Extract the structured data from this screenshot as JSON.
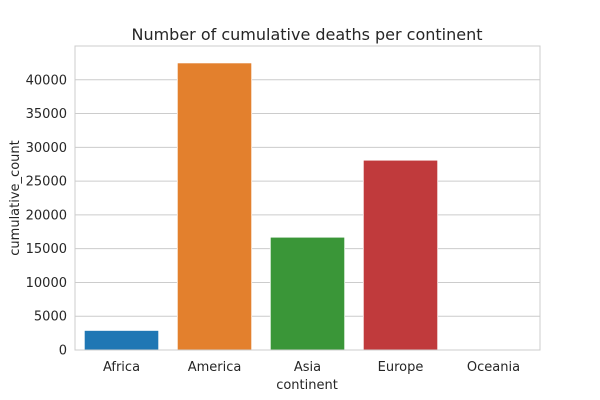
{
  "chart_data": {
    "type": "bar",
    "title": "Number of cumulative deaths per continent",
    "xlabel": "continent",
    "ylabel": "cumulative_count",
    "categories": [
      "Africa",
      "America",
      "Asia",
      "Europe",
      "Oceania"
    ],
    "values": [
      2900,
      42500,
      16700,
      28100,
      30
    ],
    "colors": [
      "#1f77b4",
      "#e3802d",
      "#3a9638",
      "#c03a3c",
      "#8e67ba"
    ],
    "ylim": [
      0,
      45000
    ],
    "yticks": [
      0,
      5000,
      10000,
      15000,
      20000,
      25000,
      30000,
      35000,
      40000
    ],
    "yticklabels": [
      "0",
      "5000",
      "10000",
      "15000",
      "20000",
      "25000",
      "30000",
      "35000",
      "40000"
    ],
    "grid": "horizontal",
    "legend": "none"
  }
}
